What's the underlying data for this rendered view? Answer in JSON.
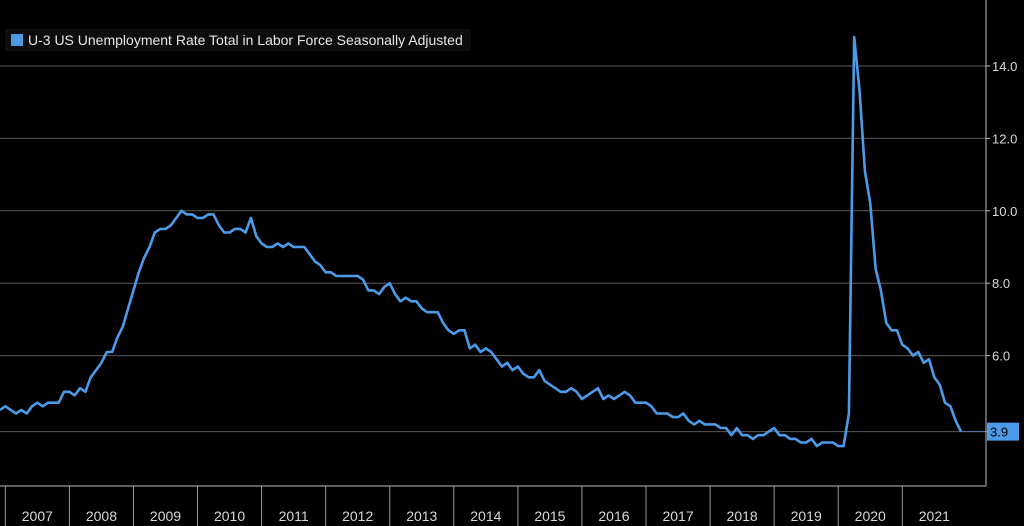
{
  "colors": {
    "background": "#000000",
    "series": "#4c9be8",
    "grid": "#5a5a5a",
    "text": "#d9d9d9"
  },
  "legend": {
    "label": "U-3 US Unemployment Rate Total in Labor Force Seasonally Adjusted"
  },
  "chart_data": {
    "type": "line",
    "ylim": [
      3.0,
      15.5
    ],
    "y_ticks": [
      "3.9",
      "6.0",
      "8.0",
      "10.0",
      "12.0",
      "14.0"
    ],
    "x_ticks": [
      "2007",
      "2008",
      "2009",
      "2010",
      "2011",
      "2012",
      "2013",
      "2014",
      "2015",
      "2016",
      "2017",
      "2018",
      "2019",
      "2020",
      "2021"
    ],
    "grid": true,
    "legend_position": "top-left",
    "last_value_label": "3.9",
    "series": [
      {
        "name": "U-3 US Unemployment Rate Total in Labor Force Seasonally Adjusted",
        "points": [
          [
            "2006-12",
            4.5
          ],
          [
            "2007-01",
            4.6
          ],
          [
            "2007-02",
            4.5
          ],
          [
            "2007-03",
            4.4
          ],
          [
            "2007-04",
            4.5
          ],
          [
            "2007-05",
            4.4
          ],
          [
            "2007-06",
            4.6
          ],
          [
            "2007-07",
            4.7
          ],
          [
            "2007-08",
            4.6
          ],
          [
            "2007-09",
            4.7
          ],
          [
            "2007-10",
            4.7
          ],
          [
            "2007-11",
            4.7
          ],
          [
            "2007-12",
            5.0
          ],
          [
            "2008-01",
            5.0
          ],
          [
            "2008-02",
            4.9
          ],
          [
            "2008-03",
            5.1
          ],
          [
            "2008-04",
            5.0
          ],
          [
            "2008-05",
            5.4
          ],
          [
            "2008-06",
            5.6
          ],
          [
            "2008-07",
            5.8
          ],
          [
            "2008-08",
            6.1
          ],
          [
            "2008-09",
            6.1
          ],
          [
            "2008-10",
            6.5
          ],
          [
            "2008-11",
            6.8
          ],
          [
            "2008-12",
            7.3
          ],
          [
            "2009-01",
            7.8
          ],
          [
            "2009-02",
            8.3
          ],
          [
            "2009-03",
            8.7
          ],
          [
            "2009-04",
            9.0
          ],
          [
            "2009-05",
            9.4
          ],
          [
            "2009-06",
            9.5
          ],
          [
            "2009-07",
            9.5
          ],
          [
            "2009-08",
            9.6
          ],
          [
            "2009-09",
            9.8
          ],
          [
            "2009-10",
            10.0
          ],
          [
            "2009-11",
            9.9
          ],
          [
            "2009-12",
            9.9
          ],
          [
            "2010-01",
            9.8
          ],
          [
            "2010-02",
            9.8
          ],
          [
            "2010-03",
            9.9
          ],
          [
            "2010-04",
            9.9
          ],
          [
            "2010-05",
            9.6
          ],
          [
            "2010-06",
            9.4
          ],
          [
            "2010-07",
            9.4
          ],
          [
            "2010-08",
            9.5
          ],
          [
            "2010-09",
            9.5
          ],
          [
            "2010-10",
            9.4
          ],
          [
            "2010-11",
            9.8
          ],
          [
            "2010-12",
            9.3
          ],
          [
            "2011-01",
            9.1
          ],
          [
            "2011-02",
            9.0
          ],
          [
            "2011-03",
            9.0
          ],
          [
            "2011-04",
            9.1
          ],
          [
            "2011-05",
            9.0
          ],
          [
            "2011-06",
            9.1
          ],
          [
            "2011-07",
            9.0
          ],
          [
            "2011-08",
            9.0
          ],
          [
            "2011-09",
            9.0
          ],
          [
            "2011-10",
            8.8
          ],
          [
            "2011-11",
            8.6
          ],
          [
            "2011-12",
            8.5
          ],
          [
            "2012-01",
            8.3
          ],
          [
            "2012-02",
            8.3
          ],
          [
            "2012-03",
            8.2
          ],
          [
            "2012-04",
            8.2
          ],
          [
            "2012-05",
            8.2
          ],
          [
            "2012-06",
            8.2
          ],
          [
            "2012-07",
            8.2
          ],
          [
            "2012-08",
            8.1
          ],
          [
            "2012-09",
            7.8
          ],
          [
            "2012-10",
            7.8
          ],
          [
            "2012-11",
            7.7
          ],
          [
            "2012-12",
            7.9
          ],
          [
            "2013-01",
            8.0
          ],
          [
            "2013-02",
            7.7
          ],
          [
            "2013-03",
            7.5
          ],
          [
            "2013-04",
            7.6
          ],
          [
            "2013-05",
            7.5
          ],
          [
            "2013-06",
            7.5
          ],
          [
            "2013-07",
            7.3
          ],
          [
            "2013-08",
            7.2
          ],
          [
            "2013-09",
            7.2
          ],
          [
            "2013-10",
            7.2
          ],
          [
            "2013-11",
            6.9
          ],
          [
            "2013-12",
            6.7
          ],
          [
            "2014-01",
            6.6
          ],
          [
            "2014-02",
            6.7
          ],
          [
            "2014-03",
            6.7
          ],
          [
            "2014-04",
            6.2
          ],
          [
            "2014-05",
            6.3
          ],
          [
            "2014-06",
            6.1
          ],
          [
            "2014-07",
            6.2
          ],
          [
            "2014-08",
            6.1
          ],
          [
            "2014-09",
            5.9
          ],
          [
            "2014-10",
            5.7
          ],
          [
            "2014-11",
            5.8
          ],
          [
            "2014-12",
            5.6
          ],
          [
            "2015-01",
            5.7
          ],
          [
            "2015-02",
            5.5
          ],
          [
            "2015-03",
            5.4
          ],
          [
            "2015-04",
            5.4
          ],
          [
            "2015-05",
            5.6
          ],
          [
            "2015-06",
            5.3
          ],
          [
            "2015-07",
            5.2
          ],
          [
            "2015-08",
            5.1
          ],
          [
            "2015-09",
            5.0
          ],
          [
            "2015-10",
            5.0
          ],
          [
            "2015-11",
            5.1
          ],
          [
            "2015-12",
            5.0
          ],
          [
            "2016-01",
            4.8
          ],
          [
            "2016-02",
            4.9
          ],
          [
            "2016-03",
            5.0
          ],
          [
            "2016-04",
            5.1
          ],
          [
            "2016-05",
            4.8
          ],
          [
            "2016-06",
            4.9
          ],
          [
            "2016-07",
            4.8
          ],
          [
            "2016-08",
            4.9
          ],
          [
            "2016-09",
            5.0
          ],
          [
            "2016-10",
            4.9
          ],
          [
            "2016-11",
            4.7
          ],
          [
            "2016-12",
            4.7
          ],
          [
            "2017-01",
            4.7
          ],
          [
            "2017-02",
            4.6
          ],
          [
            "2017-03",
            4.4
          ],
          [
            "2017-04",
            4.4
          ],
          [
            "2017-05",
            4.4
          ],
          [
            "2017-06",
            4.3
          ],
          [
            "2017-07",
            4.3
          ],
          [
            "2017-08",
            4.4
          ],
          [
            "2017-09",
            4.2
          ],
          [
            "2017-10",
            4.1
          ],
          [
            "2017-11",
            4.2
          ],
          [
            "2017-12",
            4.1
          ],
          [
            "2018-01",
            4.1
          ],
          [
            "2018-02",
            4.1
          ],
          [
            "2018-03",
            4.0
          ],
          [
            "2018-04",
            4.0
          ],
          [
            "2018-05",
            3.8
          ],
          [
            "2018-06",
            4.0
          ],
          [
            "2018-07",
            3.8
          ],
          [
            "2018-08",
            3.8
          ],
          [
            "2018-09",
            3.7
          ],
          [
            "2018-10",
            3.8
          ],
          [
            "2018-11",
            3.8
          ],
          [
            "2018-12",
            3.9
          ],
          [
            "2019-01",
            4.0
          ],
          [
            "2019-02",
            3.8
          ],
          [
            "2019-03",
            3.8
          ],
          [
            "2019-04",
            3.7
          ],
          [
            "2019-05",
            3.7
          ],
          [
            "2019-06",
            3.6
          ],
          [
            "2019-07",
            3.6
          ],
          [
            "2019-08",
            3.7
          ],
          [
            "2019-09",
            3.5
          ],
          [
            "2019-10",
            3.6
          ],
          [
            "2019-11",
            3.6
          ],
          [
            "2019-12",
            3.6
          ],
          [
            "2020-01",
            3.5
          ],
          [
            "2020-02",
            3.5
          ],
          [
            "2020-03",
            4.4
          ],
          [
            "2020-04",
            14.8
          ],
          [
            "2020-05",
            13.3
          ],
          [
            "2020-06",
            11.1
          ],
          [
            "2020-07",
            10.2
          ],
          [
            "2020-08",
            8.4
          ],
          [
            "2020-09",
            7.8
          ],
          [
            "2020-10",
            6.9
          ],
          [
            "2020-11",
            6.7
          ],
          [
            "2020-12",
            6.7
          ],
          [
            "2021-01",
            6.3
          ],
          [
            "2021-02",
            6.2
          ],
          [
            "2021-03",
            6.0
          ],
          [
            "2021-04",
            6.1
          ],
          [
            "2021-05",
            5.8
          ],
          [
            "2021-06",
            5.9
          ],
          [
            "2021-07",
            5.4
          ],
          [
            "2021-08",
            5.2
          ],
          [
            "2021-09",
            4.7
          ],
          [
            "2021-10",
            4.6
          ],
          [
            "2021-11",
            4.2
          ],
          [
            "2021-12",
            3.9
          ]
        ]
      }
    ]
  }
}
